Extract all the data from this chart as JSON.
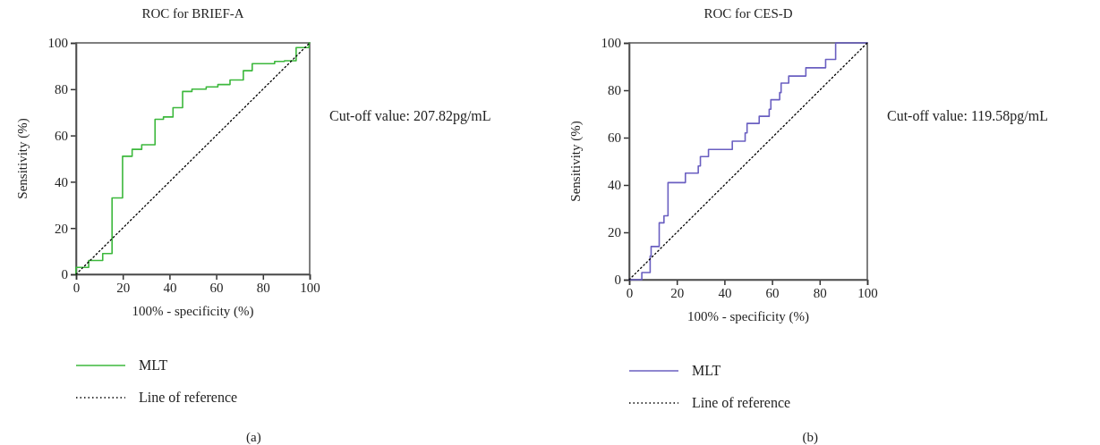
{
  "chart_data": [
    {
      "type": "step",
      "title": "ROC for BRIEF-A",
      "xlabel": "100% - specificity (%)",
      "ylabel": "Sensitivity (%)",
      "xlim": [
        0,
        100
      ],
      "ylim": [
        0,
        100
      ],
      "xticks": [
        0,
        20,
        40,
        60,
        80,
        100
      ],
      "yticks": [
        0,
        20,
        40,
        60,
        80,
        100
      ],
      "grid": false,
      "legend": "bottom",
      "marker": "none",
      "annotations": [
        "Cut-off value: 207.82pg/mL",
        "(a)"
      ],
      "series": [
        {
          "name": "MLT",
          "color": "#3cb83c",
          "line_style": "solid",
          "x": [
            0,
            0,
            5.4,
            11.4,
            15.4,
            19.9,
            24,
            28.1,
            33.8,
            37.4,
            41.5,
            45.6,
            49.6,
            55.7,
            60.7,
            65.9,
            71.6,
            75.4,
            85,
            89.2,
            94.2,
            99.7,
            100
          ],
          "values": [
            0,
            3,
            6,
            9,
            33,
            51,
            54,
            56,
            67,
            68,
            72,
            79,
            80,
            81,
            82,
            84,
            88,
            91,
            92,
            92.3,
            98,
            100,
            100
          ]
        },
        {
          "name": "Line of reference",
          "type": "line",
          "color": "#000000",
          "line_style": "dotted",
          "x": [
            0,
            100
          ],
          "values": [
            0,
            100
          ]
        }
      ]
    },
    {
      "type": "step",
      "title": "ROC for CES-D",
      "xlabel": "100% - specificity (%)",
      "ylabel": "Sensitivity (%)",
      "xlim": [
        0,
        100
      ],
      "ylim": [
        0,
        100
      ],
      "xticks": [
        0,
        20,
        40,
        60,
        80,
        100
      ],
      "yticks": [
        0,
        20,
        40,
        60,
        80,
        100
      ],
      "grid": false,
      "legend": "bottom",
      "marker": "none",
      "annotations": [
        "Cut-off value: 119.58pg/mL",
        "(b)"
      ],
      "series": [
        {
          "name": "MLT",
          "color": "#6a5fc1",
          "line_style": "solid",
          "x": [
            0,
            5.3,
            8.8,
            9.2,
            12.6,
            14.6,
            16.3,
            23.6,
            29,
            29.9,
            33.3,
            43.3,
            48.7,
            49.5,
            54.6,
            58.8,
            59.5,
            63.2,
            63.8,
            67,
            74.2,
            82.5,
            86.7,
            100
          ],
          "values": [
            0,
            3,
            10,
            14,
            24,
            27,
            41,
            45,
            48,
            52,
            55,
            58.5,
            62,
            66,
            69,
            72,
            76,
            79,
            83,
            86,
            89.5,
            93,
            100,
            100
          ]
        },
        {
          "name": "Line of reference",
          "type": "line",
          "color": "#000000",
          "line_style": "dotted",
          "x": [
            0,
            100
          ],
          "values": [
            0,
            100
          ]
        }
      ]
    }
  ]
}
